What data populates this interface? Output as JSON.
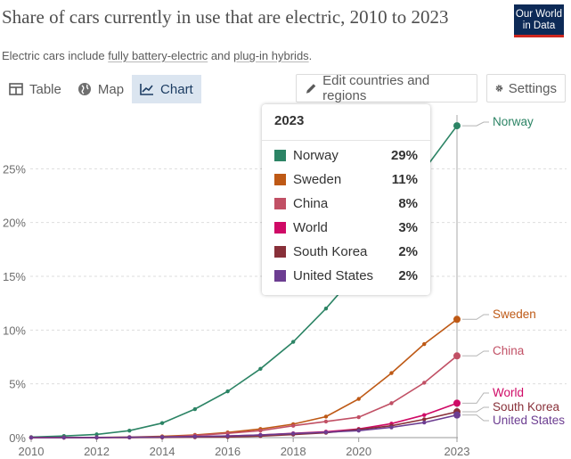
{
  "header": {
    "title": "Share of cars currently in use that are electric, 2010 to 2023",
    "subtitle_pre": "Electric cars include ",
    "subtitle_link1": "fully battery-electric",
    "subtitle_mid": " and ",
    "subtitle_link2": "plug-in hybrids",
    "subtitle_post": ".",
    "logo_line1": "Our World",
    "logo_line2": "in Data"
  },
  "tabs": [
    {
      "label": "Table",
      "icon": "table-icon"
    },
    {
      "label": "Map",
      "icon": "globe-icon"
    },
    {
      "label": "Chart",
      "icon": "line-chart-icon",
      "active": true
    }
  ],
  "toolbar": {
    "edit_label": "Edit countries and regions",
    "settings_label": "Settings"
  },
  "colors": {
    "Norway": "#2c8465",
    "Sweden": "#be5915",
    "China": "#c15065",
    "World": "#cf0a66",
    "South Korea": "#883039",
    "United States": "#6c3d91",
    "accent": "#dbe5f0"
  },
  "tooltip": {
    "year": "2023",
    "rows": [
      {
        "name": "Norway",
        "value": "29%"
      },
      {
        "name": "Sweden",
        "value": "11%"
      },
      {
        "name": "China",
        "value": "8%"
      },
      {
        "name": "World",
        "value": "3%"
      },
      {
        "name": "South Korea",
        "value": "2%"
      },
      {
        "name": "United States",
        "value": "2%"
      }
    ]
  },
  "chart_data": {
    "type": "line",
    "x": [
      2010,
      2011,
      2012,
      2013,
      2014,
      2015,
      2016,
      2017,
      2018,
      2019,
      2020,
      2021,
      2022,
      2023
    ],
    "xticks": [
      2010,
      2012,
      2014,
      2016,
      2018,
      2020,
      2023
    ],
    "xtick_labels": [
      "2010",
      "2012",
      "2014",
      "2016",
      "2018",
      "2020",
      "2023"
    ],
    "yticks": [
      0,
      5,
      10,
      15,
      20,
      25
    ],
    "ytick_labels": [
      "0%",
      "5%",
      "10%",
      "15%",
      "20%",
      "25%"
    ],
    "ylim": [
      0,
      30
    ],
    "grid": true,
    "highlight_x": 2023,
    "series": [
      {
        "name": "Norway",
        "values": [
          0.05,
          0.15,
          0.3,
          0.65,
          1.35,
          2.65,
          4.3,
          6.4,
          8.9,
          12.0,
          15.5,
          20.1,
          24.9,
          29.0
        ]
      },
      {
        "name": "Sweden",
        "values": [
          0,
          0,
          0.02,
          0.05,
          0.12,
          0.25,
          0.48,
          0.8,
          1.25,
          1.95,
          3.6,
          6.0,
          8.7,
          11.0
        ]
      },
      {
        "name": "China",
        "values": [
          0,
          0,
          0.01,
          0.02,
          0.05,
          0.2,
          0.4,
          0.65,
          1.1,
          1.5,
          1.9,
          3.2,
          5.1,
          7.6
        ]
      },
      {
        "name": "World",
        "values": [
          0,
          0,
          0.01,
          0.02,
          0.04,
          0.09,
          0.15,
          0.25,
          0.4,
          0.55,
          0.8,
          1.3,
          2.1,
          3.2
        ]
      },
      {
        "name": "South Korea",
        "values": [
          0,
          0,
          0,
          0.01,
          0.02,
          0.04,
          0.06,
          0.14,
          0.28,
          0.45,
          0.75,
          1.1,
          1.7,
          2.4
        ]
      },
      {
        "name": "United States",
        "values": [
          0,
          0,
          0.01,
          0.03,
          0.06,
          0.1,
          0.15,
          0.24,
          0.38,
          0.5,
          0.65,
          0.95,
          1.4,
          2.1
        ]
      }
    ]
  }
}
